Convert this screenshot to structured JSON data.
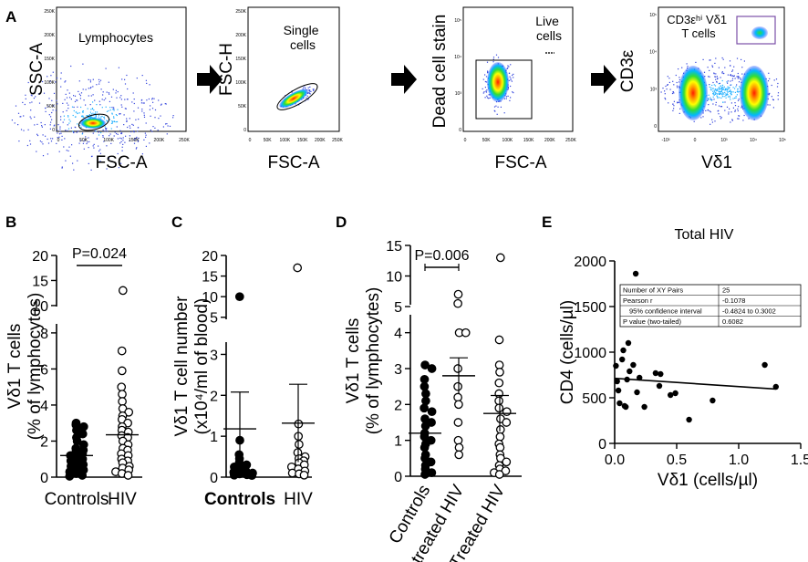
{
  "panel_labels": [
    "A",
    "B",
    "C",
    "D",
    "E"
  ],
  "flow": {
    "plots": [
      {
        "gate_label": "Lymphocytes",
        "ylabel": "SSC-A",
        "xlabel": "FSC-A",
        "x_ticks": [
          "0",
          "50K",
          "100K",
          "150K",
          "200K",
          "250K"
        ],
        "y_ticks": [
          "0",
          "50K",
          "100K",
          "150K",
          "200K",
          "250K"
        ]
      },
      {
        "gate_label": [
          "Single",
          "cells"
        ],
        "ylabel": "FSC-H",
        "xlabel": "FSC-A",
        "x_ticks": [
          "0",
          "50K",
          "100K",
          "150K",
          "200K",
          "250K"
        ],
        "y_ticks": [
          "0",
          "50K",
          "100K",
          "150K",
          "200K",
          "250K"
        ]
      },
      {
        "gate_label": [
          "Live",
          "cells"
        ],
        "ylabel": "Dead cell stain",
        "xlabel": "FSC-A",
        "x_ticks": [
          "0",
          "50K",
          "100K",
          "150K",
          "200K",
          "250K"
        ],
        "y_ticks": [
          "0",
          "10³",
          "10⁴",
          "10⁵"
        ]
      },
      {
        "gate_label": [
          "CD3εʰⁱ Vδ1",
          "T cells"
        ],
        "ylabel": "CD3ε",
        "xlabel": "Vδ1",
        "x_ticks": [
          "-10³",
          "0",
          "10³",
          "10⁴",
          "10⁵"
        ],
        "y_ticks": [
          "0",
          "10³",
          "10⁴",
          "10⁵"
        ]
      }
    ]
  },
  "chart_data": [
    {
      "panel": "B",
      "type": "scatter",
      "ylabel": [
        "Vδ1 T cells",
        "(% of lymphocytes)"
      ],
      "categories": [
        "Controls",
        "HIV"
      ],
      "y_ticks": [
        0,
        2,
        4,
        6,
        8,
        10,
        15,
        20
      ],
      "ylim": [
        0,
        20
      ],
      "axis_break": [
        8.5,
        9.8
      ],
      "annotation": "P=0.024",
      "series": [
        {
          "name": "Controls",
          "marker": "filled",
          "values": [
            3.0,
            2.9,
            2.8,
            2.6,
            2.4,
            2.2,
            2.0,
            1.8,
            1.6,
            1.5,
            1.4,
            1.3,
            1.2,
            1.1,
            1.0,
            0.9,
            0.8,
            0.7,
            0.6,
            0.5,
            0.4,
            0.3,
            0.2,
            0.1,
            0.05
          ],
          "mean": 1.2
        },
        {
          "name": "HIV",
          "marker": "open",
          "values": [
            13.0,
            7.0,
            5.9,
            5.0,
            4.6,
            4.2,
            3.8,
            3.6,
            3.4,
            3.2,
            3.0,
            2.8,
            2.6,
            2.5,
            2.3,
            2.2,
            2.0,
            1.8,
            1.6,
            1.5,
            1.3,
            1.2,
            1.0,
            0.9,
            0.8,
            0.6,
            0.5,
            0.4,
            0.3,
            0.2,
            0.1
          ],
          "mean": 2.35
        }
      ]
    },
    {
      "panel": "C",
      "type": "scatter",
      "ylabel": [
        "Vδ1 T cell number",
        "(x10⁴/ml of blood)"
      ],
      "categories": [
        "Controls",
        "HIV"
      ],
      "y_ticks": [
        0,
        1,
        2,
        3,
        5,
        10,
        15,
        20
      ],
      "ylim": [
        0,
        20
      ],
      "axis_break": [
        3.3,
        4.5
      ],
      "series": [
        {
          "name": "Controls",
          "marker": "filled",
          "values": [
            10.0,
            0.9,
            0.55,
            0.45,
            0.35,
            0.3,
            0.25,
            0.2,
            0.15,
            0.12,
            0.1,
            0.08,
            0.06,
            0.05,
            0.04
          ],
          "mean": 1.18,
          "sd": 0.9
        },
        {
          "name": "HIV",
          "marker": "open",
          "values": [
            17.0,
            1.3,
            1.0,
            0.8,
            0.6,
            0.5,
            0.45,
            0.4,
            0.35,
            0.3,
            0.25,
            0.2,
            0.15,
            0.1,
            0.08,
            0.05
          ],
          "mean": 1.32,
          "sd": 0.95
        }
      ]
    },
    {
      "panel": "D",
      "type": "scatter",
      "ylabel": [
        "Vδ1 T cells",
        "(% of lymphocytes)"
      ],
      "categories": [
        "Controls",
        "Untreated HIV",
        "Treated HIV"
      ],
      "y_ticks": [
        0,
        1,
        2,
        3,
        4,
        5,
        10,
        15
      ],
      "ylim": [
        0,
        15
      ],
      "axis_break": [
        4.5,
        5.3
      ],
      "annotation": "P=0.006",
      "series": [
        {
          "name": "Controls",
          "marker": "filled",
          "values": [
            3.1,
            3.0,
            2.7,
            2.5,
            2.3,
            2.1,
            1.9,
            1.8,
            1.6,
            1.5,
            1.4,
            1.2,
            1.1,
            1.0,
            0.9,
            0.8,
            0.6,
            0.5,
            0.4,
            0.3,
            0.2,
            0.1,
            0.05
          ],
          "mean": 1.2
        },
        {
          "name": "Untreated HIV",
          "marker": "open",
          "values": [
            7.0,
            5.5,
            4.0,
            4.0,
            3.0,
            2.5,
            2.2,
            2.0,
            1.5,
            1.0,
            0.8,
            0.6
          ],
          "mean": 2.8,
          "sem": 0.5
        },
        {
          "name": "Treated HIV",
          "marker": "open",
          "values": [
            13.0,
            3.8,
            3.1,
            2.9,
            2.6,
            2.3,
            2.1,
            1.9,
            1.8,
            1.6,
            1.5,
            1.3,
            1.1,
            0.9,
            0.8,
            0.6,
            0.5,
            0.4,
            0.3,
            0.2,
            0.15,
            0.1,
            0.05
          ],
          "mean": 1.75,
          "sem": 0.5
        }
      ]
    },
    {
      "panel": "E",
      "type": "scatter",
      "title": "Total HIV",
      "xlabel": "Vδ1 (cells/µl)",
      "ylabel": "CD4 (cells/µl)",
      "xlim": [
        0,
        1.5
      ],
      "ylim": [
        0,
        2000
      ],
      "x_ticks": [
        "0.0",
        "0.5",
        "1.0",
        "1.5"
      ],
      "y_ticks": [
        "0",
        "500",
        "1000",
        "1500",
        "2000"
      ],
      "points": [
        [
          0.01,
          850
        ],
        [
          0.02,
          680
        ],
        [
          0.03,
          580
        ],
        [
          0.04,
          440
        ],
        [
          0.06,
          920
        ],
        [
          0.07,
          1020
        ],
        [
          0.08,
          410
        ],
        [
          0.09,
          400
        ],
        [
          0.1,
          700
        ],
        [
          0.11,
          1100
        ],
        [
          0.12,
          790
        ],
        [
          0.15,
          860
        ],
        [
          0.17,
          1860
        ],
        [
          0.18,
          560
        ],
        [
          0.2,
          720
        ],
        [
          0.24,
          400
        ],
        [
          0.33,
          770
        ],
        [
          0.36,
          630
        ],
        [
          0.37,
          760
        ],
        [
          0.45,
          530
        ],
        [
          0.49,
          550
        ],
        [
          0.6,
          260
        ],
        [
          0.79,
          470
        ],
        [
          1.21,
          860
        ],
        [
          1.3,
          620
        ]
      ],
      "fit_line": {
        "x": [
          0.0,
          1.3
        ],
        "y": [
          713,
          596
        ]
      },
      "stats_table": [
        [
          "Number of XY Pairs",
          "25"
        ],
        [
          "Pearson r",
          "-0.1078"
        ],
        [
          "95% confidence interval",
          "-0.4824 to 0.3002"
        ],
        [
          "P value (two-tailed)",
          "0.6082"
        ]
      ]
    }
  ]
}
